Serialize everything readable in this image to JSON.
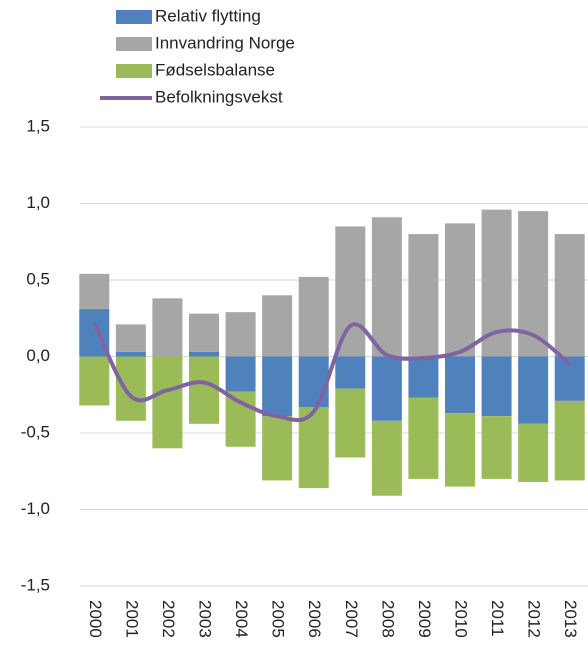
{
  "chart_data": {
    "type": "bar",
    "stacked": true,
    "categories": [
      "2000",
      "2001",
      "2002",
      "2003",
      "2004",
      "2005",
      "2006",
      "2007",
      "2008",
      "2009",
      "2010",
      "2011",
      "2012",
      "2013"
    ],
    "series": [
      {
        "name": "Relativ flytting",
        "color": "#4f81bd",
        "type": "bar",
        "values": [
          0.31,
          0.03,
          0,
          0.03,
          -0.23,
          -0.39,
          -0.33,
          -0.21,
          -0.42,
          -0.27,
          -0.37,
          -0.39,
          -0.44,
          -0.29
        ]
      },
      {
        "name": "Innvandring Norge",
        "color": "#a6a6a6",
        "type": "bar",
        "values": [
          0.23,
          0.18,
          0.38,
          0.25,
          0.29,
          0.4,
          0.52,
          0.85,
          0.91,
          0.8,
          0.87,
          0.96,
          0.95,
          0.8
        ]
      },
      {
        "name": "Fødselsbalanse",
        "color": "#9bbb59",
        "type": "bar",
        "values": [
          -0.32,
          -0.42,
          -0.6,
          -0.44,
          -0.36,
          -0.42,
          -0.53,
          -0.45,
          -0.49,
          -0.53,
          -0.48,
          -0.41,
          -0.38,
          -0.52
        ]
      },
      {
        "name": "Befolkningsvekst",
        "color": "#8064a2",
        "type": "line",
        "smooth": true,
        "values": [
          0.22,
          -0.26,
          -0.22,
          -0.17,
          -0.3,
          -0.39,
          -0.36,
          0.2,
          0.01,
          -0.01,
          0.03,
          0.16,
          0.14,
          -0.05
        ]
      }
    ],
    "ylim": [
      -1.5,
      1.5
    ],
    "yticks": [
      {
        "value": -1.5,
        "label": "-1,5"
      },
      {
        "value": -1,
        "label": "-1,0"
      },
      {
        "value": -0.5,
        "label": "-0,5"
      },
      {
        "value": 0,
        "label": "0,0"
      },
      {
        "value": 0.5,
        "label": "0,5"
      },
      {
        "value": 1,
        "label": "1,0"
      },
      {
        "value": 1.5,
        "label": "1,5"
      }
    ],
    "grid": true,
    "legend": "top-left"
  }
}
